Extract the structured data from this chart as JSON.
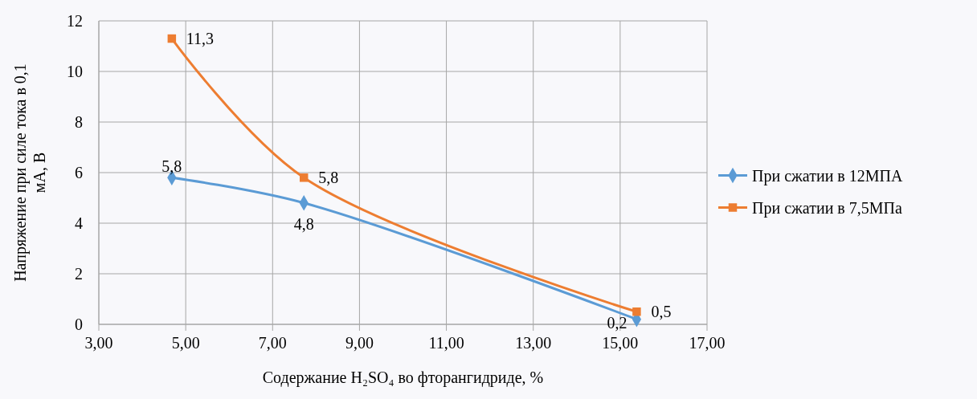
{
  "chart_data": {
    "type": "line",
    "xlabel": "Содержание H₂SO₄ во фторангидриде, %",
    "ylabel": "Напряжение при силе тока в 0,1 мА, В",
    "x": [
      4.68,
      7.72,
      15.38
    ],
    "series": [
      {
        "name": "При сжатии в 12МПА",
        "color": "#5b9bd5",
        "values": [
          5.8,
          4.8,
          0.2
        ],
        "value_labels": [
          "5,8",
          "4,8",
          "0,2"
        ],
        "marker": "diamond"
      },
      {
        "name": "При сжатии в 7,5МПа",
        "color": "#ed7d31",
        "values": [
          11.3,
          5.8,
          0.5
        ],
        "value_labels": [
          "11,3",
          "5,8",
          "0,5"
        ],
        "marker": "square"
      }
    ],
    "xlim": [
      3,
      17
    ],
    "xticks": [
      {
        "value": 3,
        "label": "3,00"
      },
      {
        "value": 5,
        "label": "5,00"
      },
      {
        "value": 7,
        "label": "7,00"
      },
      {
        "value": 9,
        "label": "9,00"
      },
      {
        "value": 11,
        "label": "11,00"
      },
      {
        "value": 13,
        "label": "13,00"
      },
      {
        "value": 15,
        "label": "15,00"
      },
      {
        "value": 17,
        "label": "17,00"
      }
    ],
    "ylim": [
      0,
      12
    ],
    "yticks": [
      0,
      2,
      4,
      6,
      8,
      10,
      12
    ],
    "grid": true,
    "legend": "right"
  }
}
